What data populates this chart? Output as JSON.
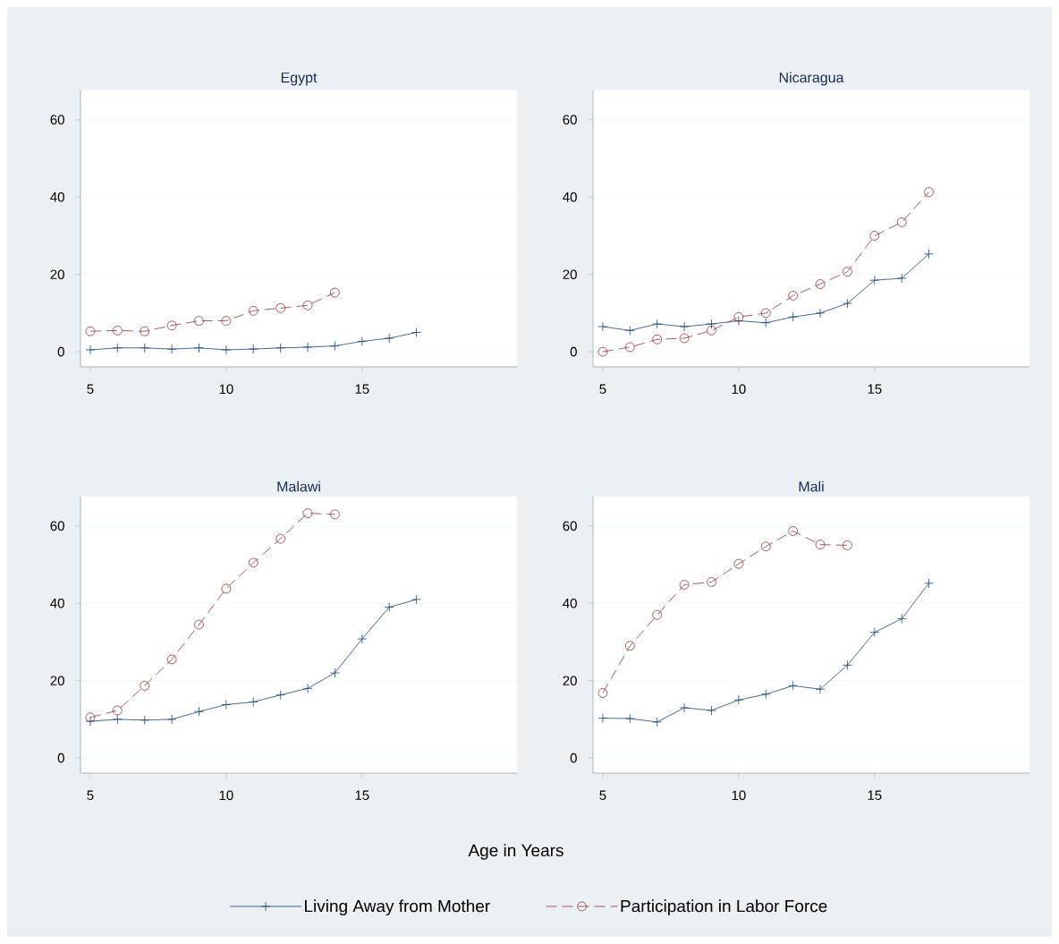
{
  "chart_data": [
    {
      "type": "line",
      "title": "Egypt",
      "xlim": [
        4.64,
        20.7
      ],
      "ylim": [
        -3.9,
        67.6
      ],
      "xticks": [
        5,
        10,
        15
      ],
      "yticks": [
        0,
        20,
        40,
        60
      ],
      "grid": "y",
      "series": [
        {
          "color": "#1a476f",
          "marker": "cross",
          "line_style": "solid",
          "x": [
            5,
            6,
            7,
            8,
            9,
            10,
            11,
            12,
            13,
            14,
            15,
            16,
            17
          ],
          "values": [
            0.5,
            1,
            1,
            0.7,
            1,
            0.5,
            0.7,
            1,
            1.2,
            1.5,
            2.7,
            3.5,
            5
          ]
        },
        {
          "color": "#90353b",
          "marker": "circle",
          "line_style": "dashed",
          "x": [
            5,
            6,
            7,
            8,
            9,
            10,
            11,
            12,
            13,
            14
          ],
          "values": [
            5.3,
            5.5,
            5.3,
            6.8,
            8,
            8,
            10.6,
            11.3,
            12,
            15.3
          ]
        }
      ]
    },
    {
      "type": "line",
      "title": "Nicaragua",
      "xlim": [
        4.64,
        20.7
      ],
      "ylim": [
        -3.9,
        67.6
      ],
      "xticks": [
        5,
        10,
        15
      ],
      "yticks": [
        0,
        20,
        40,
        60
      ],
      "grid": "y",
      "series": [
        {
          "color": "#1a476f",
          "marker": "cross",
          "line_style": "solid",
          "x": [
            5,
            6,
            7,
            8,
            9,
            10,
            11,
            12,
            13,
            14,
            15,
            16,
            17
          ],
          "values": [
            6.5,
            5.5,
            7.2,
            6.5,
            7.2,
            8,
            7.5,
            9,
            10,
            12.5,
            18.5,
            19,
            25.3
          ]
        },
        {
          "color": "#90353b",
          "marker": "circle",
          "line_style": "dashed",
          "x": [
            5,
            6,
            7,
            8,
            9,
            10,
            11,
            12,
            13,
            14,
            15,
            16,
            17
          ],
          "values": [
            0,
            1.2,
            3.2,
            3.5,
            5.5,
            9,
            10,
            14.5,
            17.5,
            20.7,
            30,
            33.5,
            41.3
          ]
        }
      ]
    },
    {
      "type": "line",
      "title": "Malawi",
      "xlabel": "Age in Years",
      "legend": "bottom",
      "xlim": [
        4.64,
        20.7
      ],
      "ylim": [
        -3.9,
        67.6
      ],
      "xticks": [
        5,
        10,
        15
      ],
      "yticks": [
        0,
        20,
        40,
        60
      ],
      "grid": "y",
      "series": [
        {
          "name": "Living Away from Mother",
          "color": "#1a476f",
          "marker": "cross",
          "line_style": "solid",
          "x": [
            5,
            6,
            7,
            8,
            9,
            10,
            11,
            12,
            13,
            14,
            15,
            16,
            17
          ],
          "values": [
            9.5,
            10,
            9.8,
            10,
            12,
            13.8,
            14.5,
            16.3,
            18,
            22,
            30.8,
            39,
            41
          ]
        },
        {
          "name": "Participation in Labor Force",
          "color": "#90353b",
          "marker": "circle",
          "line_style": "dashed",
          "x": [
            5,
            6,
            7,
            8,
            9,
            10,
            11,
            12,
            13,
            14
          ],
          "values": [
            10.5,
            12.3,
            18.7,
            25.5,
            34.5,
            43.8,
            50.5,
            56.7,
            63.3,
            63
          ]
        }
      ]
    },
    {
      "type": "line",
      "title": "Mali",
      "xlim": [
        4.64,
        20.7
      ],
      "ylim": [
        -3.9,
        67.6
      ],
      "xticks": [
        5,
        10,
        15
      ],
      "yticks": [
        0,
        20,
        40,
        60
      ],
      "grid": "y",
      "series": [
        {
          "color": "#1a476f",
          "marker": "cross",
          "line_style": "solid",
          "x": [
            5,
            6,
            7,
            8,
            9,
            10,
            11,
            12,
            13,
            14,
            15,
            16,
            17
          ],
          "values": [
            10.3,
            10.2,
            9.3,
            13,
            12.3,
            15,
            16.5,
            18.7,
            17.8,
            24,
            32.5,
            36,
            45.2
          ]
        },
        {
          "color": "#90353b",
          "marker": "circle",
          "line_style": "dashed",
          "x": [
            5,
            6,
            7,
            8,
            9,
            10,
            11,
            12,
            13,
            14
          ],
          "values": [
            16.8,
            29,
            37,
            44.8,
            45.5,
            50.2,
            54.7,
            58.7,
            55.2,
            55
          ]
        }
      ]
    }
  ]
}
